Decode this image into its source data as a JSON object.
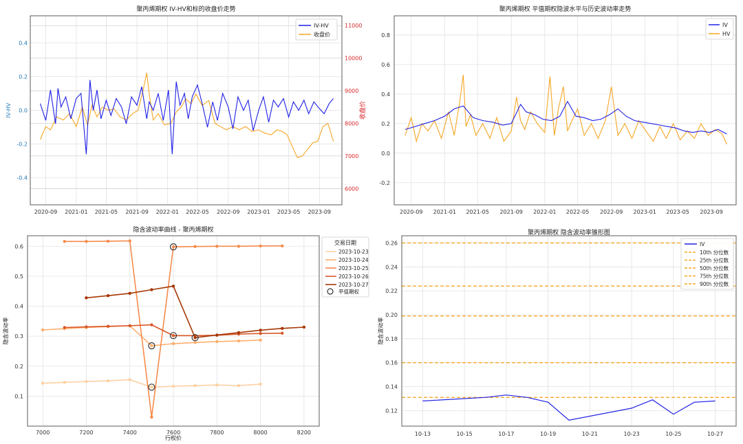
{
  "chart_data": [
    {
      "type": "line",
      "title": "聚丙烯期权 IV-HV和标的收盘价走势",
      "ylabel": "IV-HV",
      "y2label": "收盘价",
      "ylim": [
        -0.56,
        0.56
      ],
      "y2lim": [
        5500,
        11300
      ],
      "yticks": [
        "-0.4",
        "-0.2",
        "0.0",
        "0.2",
        "0.4"
      ],
      "y2ticks": [
        "6000",
        "7000",
        "8000",
        "9000",
        "10000",
        "11000"
      ],
      "xticks": [
        "2020-09",
        "2021-01",
        "2021-05",
        "2021-09",
        "2022-01",
        "2022-05",
        "2022-09",
        "2023-01",
        "2023-05",
        "2023-09"
      ],
      "xrange": [
        "2020-07-01",
        "2023-11-30"
      ],
      "grid": true,
      "legend_position": "top-right",
      "colors": {
        "iv_hv": "#1f1fe6",
        "close": "#f5a623",
        "left_axis": "#1f77b4",
        "right_axis": "#d62728"
      },
      "series": [
        {
          "name": "IV-HV",
          "axis": "left",
          "x": [
            "2020-08-10",
            "2020-09-01",
            "2020-09-20",
            "2020-10-10",
            "2020-10-20",
            "2020-11-01",
            "2020-11-20",
            "2020-12-10",
            "2021-01-01",
            "2021-01-20",
            "2021-02-10",
            "2021-02-25",
            "2021-03-10",
            "2021-03-25",
            "2021-04-10",
            "2021-05-01",
            "2021-05-20",
            "2021-06-10",
            "2021-07-01",
            "2021-07-20",
            "2021-08-10",
            "2021-09-01",
            "2021-09-20",
            "2021-10-10",
            "2021-10-20",
            "2021-11-05",
            "2021-11-25",
            "2021-12-15",
            "2022-01-05",
            "2022-01-20",
            "2022-02-05",
            "2022-02-20",
            "2022-03-10",
            "2022-03-25",
            "2022-04-10",
            "2022-05-01",
            "2022-05-20",
            "2022-06-10",
            "2022-07-01",
            "2022-07-20",
            "2022-08-10",
            "2022-09-01",
            "2022-09-20",
            "2022-10-10",
            "2022-11-01",
            "2022-11-20",
            "2022-12-10",
            "2023-01-01",
            "2023-01-20",
            "2023-02-10",
            "2023-03-01",
            "2023-03-20",
            "2023-04-10",
            "2023-05-01",
            "2023-05-20",
            "2023-06-10",
            "2023-07-01",
            "2023-07-20",
            "2023-08-10",
            "2023-09-01",
            "2023-09-20",
            "2023-10-10",
            "2023-10-27"
          ],
          "y": [
            0.04,
            -0.06,
            0.12,
            -0.08,
            0.13,
            0.02,
            0.08,
            -0.05,
            0.07,
            0.1,
            -0.26,
            0.18,
            0.0,
            0.12,
            -0.05,
            0.06,
            -0.03,
            0.07,
            0.02,
            -0.08,
            0.08,
            0.03,
            0.14,
            -0.05,
            0.05,
            0.0,
            0.1,
            -0.06,
            0.12,
            -0.26,
            0.17,
            0.03,
            0.1,
            -0.05,
            0.08,
            0.15,
            0.04,
            -0.1,
            0.05,
            -0.06,
            0.1,
            0.02,
            -0.11,
            0.08,
            0.0,
            0.06,
            -0.12,
            0.0,
            0.08,
            -0.07,
            0.06,
            0.02,
            0.07,
            -0.04,
            0.05,
            0.0,
            0.06,
            -0.02,
            0.05,
            0.01,
            -0.02,
            0.04,
            0.07
          ]
        },
        {
          "name": "收盘价",
          "axis": "right",
          "x": [
            "2020-08-10",
            "2020-09-01",
            "2020-09-20",
            "2020-10-15",
            "2020-11-10",
            "2020-12-05",
            "2021-01-01",
            "2021-01-25",
            "2021-02-15",
            "2021-03-05",
            "2021-03-25",
            "2021-04-15",
            "2021-05-10",
            "2021-06-01",
            "2021-06-25",
            "2021-07-20",
            "2021-08-15",
            "2021-09-05",
            "2021-09-25",
            "2021-10-10",
            "2021-10-20",
            "2021-11-05",
            "2021-11-25",
            "2021-12-20",
            "2022-01-15",
            "2022-02-05",
            "2022-02-25",
            "2022-03-15",
            "2022-04-05",
            "2022-04-25",
            "2022-05-20",
            "2022-06-15",
            "2022-07-10",
            "2022-08-01",
            "2022-08-25",
            "2022-09-20",
            "2022-10-15",
            "2022-11-10",
            "2022-12-05",
            "2023-01-01",
            "2023-01-25",
            "2023-02-20",
            "2023-03-15",
            "2023-04-05",
            "2023-04-25",
            "2023-05-15",
            "2023-06-05",
            "2023-06-25",
            "2023-07-15",
            "2023-08-05",
            "2023-08-25",
            "2023-09-15",
            "2023-10-05",
            "2023-10-27"
          ],
          "y": [
            7500,
            7900,
            7800,
            8200,
            8100,
            8300,
            7900,
            8500,
            7950,
            8550,
            8200,
            8500,
            8400,
            8450,
            8200,
            8100,
            8300,
            8400,
            9000,
            9550,
            8900,
            8100,
            8300,
            7950,
            8000,
            8350,
            8500,
            8750,
            8600,
            8900,
            8550,
            8700,
            8000,
            7900,
            7800,
            7900,
            7800,
            7900,
            7750,
            7800,
            7700,
            7650,
            7800,
            7750,
            7650,
            7300,
            6950,
            7000,
            7200,
            7400,
            7450,
            7900,
            8000,
            7450
          ]
        }
      ]
    },
    {
      "type": "line",
      "title": "聚丙烯期权 平值期权隐波水平与历史波动率走势",
      "ylim": [
        -0.35,
        0.93
      ],
      "yticks": [
        "-0.2",
        "0.0",
        "0.2",
        "0.4",
        "0.6",
        "0.8"
      ],
      "xticks": [
        "2020-09",
        "2021-01",
        "2021-05",
        "2021-09",
        "2022-01",
        "2022-05",
        "2022-09",
        "2023-01",
        "2023-05",
        "2023-09"
      ],
      "xrange": [
        "2020-07-01",
        "2023-11-30"
      ],
      "grid": true,
      "legend_position": "top-right",
      "colors": {
        "iv": "#1f1fe6",
        "hv": "#f5a623"
      },
      "series": [
        {
          "name": "IV",
          "x": [
            "2020-08-10",
            "2020-09-15",
            "2020-10-20",
            "2020-11-25",
            "2021-01-01",
            "2021-02-05",
            "2021-03-10",
            "2021-04-15",
            "2021-05-20",
            "2021-06-25",
            "2021-08-01",
            "2021-09-01",
            "2021-10-05",
            "2021-10-25",
            "2021-11-25",
            "2021-12-25",
            "2022-01-25",
            "2022-02-25",
            "2022-03-25",
            "2022-04-25",
            "2022-05-25",
            "2022-06-25",
            "2022-07-25",
            "2022-08-25",
            "2022-09-25",
            "2022-10-25",
            "2022-11-25",
            "2022-12-25",
            "2023-01-25",
            "2023-02-25",
            "2023-03-25",
            "2023-04-25",
            "2023-05-25",
            "2023-06-25",
            "2023-07-25",
            "2023-08-25",
            "2023-09-25",
            "2023-10-27"
          ],
          "y": [
            0.16,
            0.18,
            0.2,
            0.22,
            0.25,
            0.3,
            0.32,
            0.24,
            0.22,
            0.21,
            0.19,
            0.2,
            0.33,
            0.28,
            0.26,
            0.23,
            0.22,
            0.25,
            0.35,
            0.25,
            0.24,
            0.22,
            0.23,
            0.26,
            0.3,
            0.25,
            0.22,
            0.21,
            0.2,
            0.19,
            0.18,
            0.17,
            0.15,
            0.14,
            0.15,
            0.14,
            0.16,
            0.13
          ]
        },
        {
          "name": "HV",
          "x": [
            "2020-08-10",
            "2020-09-01",
            "2020-09-20",
            "2020-10-10",
            "2020-11-01",
            "2020-11-25",
            "2020-12-20",
            "2021-01-15",
            "2021-02-05",
            "2021-02-25",
            "2021-03-10",
            "2021-03-20",
            "2021-04-05",
            "2021-04-25",
            "2021-05-20",
            "2021-06-15",
            "2021-07-10",
            "2021-08-05",
            "2021-09-01",
            "2021-09-20",
            "2021-10-05",
            "2021-10-20",
            "2021-11-10",
            "2021-12-05",
            "2022-01-01",
            "2022-01-20",
            "2022-02-05",
            "2022-02-20",
            "2022-03-10",
            "2022-03-25",
            "2022-04-10",
            "2022-05-01",
            "2022-05-25",
            "2022-06-20",
            "2022-07-15",
            "2022-08-10",
            "2022-09-01",
            "2022-09-25",
            "2022-10-20",
            "2022-11-15",
            "2022-12-10",
            "2023-01-05",
            "2023-02-01",
            "2023-02-25",
            "2023-03-20",
            "2023-04-15",
            "2023-05-10",
            "2023-06-05",
            "2023-07-01",
            "2023-07-25",
            "2023-08-20",
            "2023-09-15",
            "2023-10-10",
            "2023-10-27"
          ],
          "y": [
            0.12,
            0.24,
            0.08,
            0.2,
            0.15,
            0.22,
            0.1,
            0.28,
            0.12,
            0.35,
            0.53,
            0.18,
            0.26,
            0.12,
            0.2,
            0.1,
            0.24,
            0.08,
            0.15,
            0.38,
            0.22,
            0.16,
            0.28,
            0.2,
            0.14,
            0.52,
            0.12,
            0.3,
            0.45,
            0.15,
            0.22,
            0.3,
            0.12,
            0.2,
            0.1,
            0.22,
            0.45,
            0.12,
            0.2,
            0.1,
            0.22,
            0.15,
            0.08,
            0.18,
            0.1,
            0.2,
            0.09,
            0.15,
            0.1,
            0.2,
            0.12,
            0.16,
            0.13,
            0.06
          ]
        }
      ]
    },
    {
      "type": "line",
      "title": "隐含波动率曲线 - 聚丙烯期权",
      "xlabel": "行权价",
      "ylabel": "隐含波动率",
      "xlim": [
        6930,
        8270
      ],
      "ylim": [
        0.0,
        0.635
      ],
      "xticks": [
        "7000",
        "7200",
        "7400",
        "7600",
        "7800",
        "8000",
        "8200"
      ],
      "yticks": [
        "0.1",
        "0.2",
        "0.3",
        "0.4",
        "0.5",
        "0.6"
      ],
      "grid": true,
      "legend_title": "交易日期",
      "legend_position": "outside-right",
      "atm_label": "平值期权",
      "series": [
        {
          "name": "2023-10-23",
          "color": "#fdd0a2",
          "x": [
            7000,
            7100,
            7200,
            7300,
            7400,
            7500,
            7600,
            7700,
            7800,
            7900,
            8000
          ],
          "y": [
            0.143,
            0.146,
            0.149,
            0.151,
            0.155,
            0.13,
            0.133,
            0.135,
            0.137,
            0.135,
            0.14
          ],
          "atm_x": 7500,
          "atm_y": 0.13
        },
        {
          "name": "2023-10-24",
          "color": "#fdae6b",
          "x": [
            7000,
            7100,
            7200,
            7300,
            7400,
            7500,
            7600,
            7700,
            7800,
            7900,
            8000
          ],
          "y": [
            0.321,
            0.325,
            0.329,
            0.332,
            0.335,
            0.268,
            0.275,
            0.279,
            0.282,
            0.284,
            0.287
          ],
          "atm_x": 7500,
          "atm_y": 0.268
        },
        {
          "name": "2023-10-25",
          "color": "#f58b4b",
          "x": [
            7100,
            7200,
            7300,
            7400,
            7500,
            7600,
            7700,
            7800,
            7900,
            8000,
            8100
          ],
          "y": [
            0.616,
            0.616,
            0.617,
            0.618,
            0.03,
            0.598,
            0.599,
            0.6,
            0.6,
            0.601,
            0.601
          ],
          "atm_x": 7600,
          "atm_y": 0.598
        },
        {
          "name": "2023-10-26",
          "color": "#d9592a",
          "x": [
            7100,
            7200,
            7300,
            7400,
            7500,
            7600,
            7700,
            7800,
            7900,
            8000,
            8100
          ],
          "y": [
            0.329,
            0.331,
            0.333,
            0.335,
            0.338,
            0.302,
            0.302,
            0.303,
            0.307,
            0.309,
            0.31
          ],
          "atm_x": 7600,
          "atm_y": 0.302
        },
        {
          "name": "2023-10-27",
          "color": "#a63603",
          "x": [
            7200,
            7300,
            7400,
            7500,
            7600,
            7700,
            7800,
            7900,
            8000,
            8100,
            8200
          ],
          "y": [
            0.428,
            0.435,
            0.443,
            0.455,
            0.467,
            0.295,
            0.304,
            0.312,
            0.32,
            0.326,
            0.33
          ],
          "atm_x": 7700,
          "atm_y": 0.295
        }
      ]
    },
    {
      "type": "line",
      "title": "聚丙烯期权 隐含波动率锥形图",
      "ylabel": "隐含波动率",
      "ylim": [
        0.107,
        0.266
      ],
      "yticks": [
        "0.12",
        "0.14",
        "0.16",
        "0.18",
        "0.20",
        "0.22",
        "0.24",
        "0.26"
      ],
      "xticks": [
        "10-13",
        "10-15",
        "10-17",
        "10-19",
        "10-21",
        "10-23",
        "10-25",
        "10-27"
      ],
      "xrange": [
        "2023-10-12",
        "2023-10-28"
      ],
      "grid": true,
      "legend_position": "top-right",
      "colors": {
        "iv": "#1f1fe6",
        "percentile": "#f5a623"
      },
      "series": [
        {
          "name": "IV",
          "x": [
            "2023-10-13",
            "2023-10-16",
            "2023-10-17",
            "2023-10-18",
            "2023-10-19",
            "2023-10-20",
            "2023-10-23",
            "2023-10-24",
            "2023-10-25",
            "2023-10-26",
            "2023-10-27"
          ],
          "y": [
            0.128,
            0.131,
            0.133,
            0.131,
            0.127,
            0.112,
            0.122,
            0.129,
            0.117,
            0.127,
            0.128
          ]
        }
      ],
      "percentiles": [
        {
          "name": "10th 分位数",
          "value": 0.131
        },
        {
          "name": "25th 分位数",
          "value": 0.16
        },
        {
          "name": "50th 分位数",
          "value": 0.199
        },
        {
          "name": "75th 分位数",
          "value": 0.224
        },
        {
          "name": "90th 分位数",
          "value": 0.26
        }
      ]
    }
  ]
}
